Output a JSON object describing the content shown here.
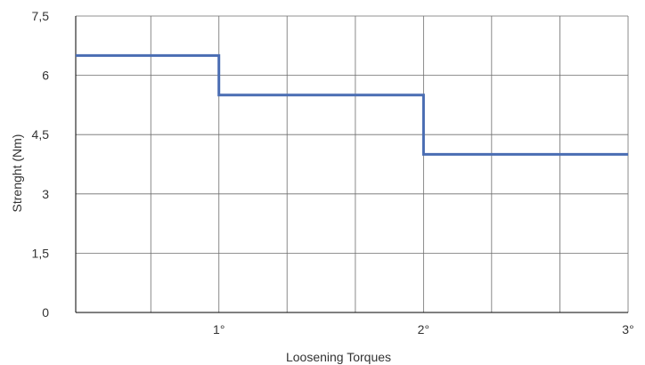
{
  "chart_data": {
    "type": "line",
    "step": true,
    "xlabel": "Loosening Torques",
    "ylabel": "Strenght (Nm)",
    "ylim": [
      0,
      7.5
    ],
    "xlim": [
      0.3,
      3
    ],
    "yticks": [
      {
        "value": 0,
        "label": "0"
      },
      {
        "value": 1.5,
        "label": "1,5"
      },
      {
        "value": 3,
        "label": "3"
      },
      {
        "value": 4.5,
        "label": "4,5"
      },
      {
        "value": 6,
        "label": "6"
      },
      {
        "value": 7.5,
        "label": "7,5"
      }
    ],
    "xticks": [
      {
        "value": 1,
        "label": "1°"
      },
      {
        "value": 2,
        "label": "2°"
      },
      {
        "value": 3,
        "label": "3°"
      }
    ],
    "x_gridlines": [
      0.667,
      1,
      1.333,
      1.667,
      2,
      2.333,
      2.667,
      3
    ],
    "grid": true,
    "legend": "none",
    "series": [
      {
        "color": "#4a6db3",
        "points": [
          {
            "x": 0.3,
            "y": 6.5
          },
          {
            "x": 1,
            "y": 6.5
          },
          {
            "x": 1,
            "y": 5.5
          },
          {
            "x": 2,
            "y": 5.5
          },
          {
            "x": 2,
            "y": 4.0
          },
          {
            "x": 3,
            "y": 4.0
          }
        ]
      }
    ]
  }
}
